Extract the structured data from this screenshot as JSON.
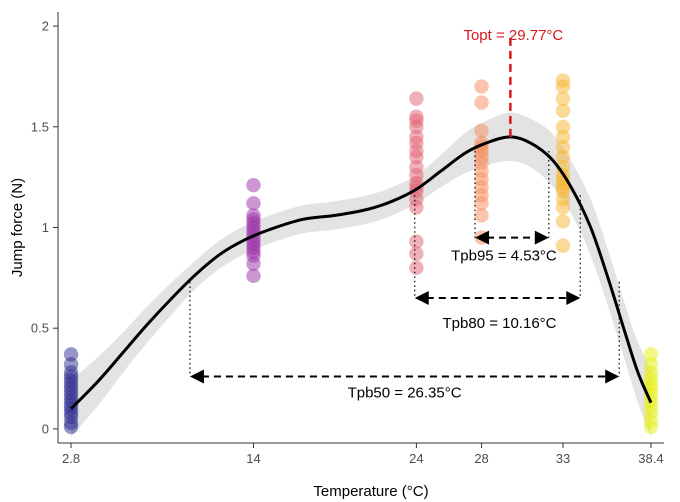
{
  "chart_data": {
    "type": "scatter",
    "xlabel": "Temperature (°C)",
    "ylabel": "Jump force (N)",
    "xlim": [
      2.0,
      39.2
    ],
    "ylim": [
      -0.07,
      2.07
    ],
    "x_ticks": [
      2.8,
      14,
      24,
      28,
      33,
      38.4
    ],
    "x_tick_labels": [
      "2.8",
      "14",
      "24",
      "28",
      "33",
      "38.4"
    ],
    "y_ticks": [
      0,
      0.5,
      1,
      1.5,
      2
    ],
    "y_tick_labels": [
      "0",
      "0.5",
      "1",
      "1.5",
      "2"
    ],
    "grid": false,
    "legend": "none",
    "series": [
      {
        "x": 2.8,
        "color": "#2e2e8f",
        "values": [
          0.01,
          0.03,
          0.06,
          0.08,
          0.1,
          0.12,
          0.14,
          0.16,
          0.18,
          0.2,
          0.22,
          0.24,
          0.26,
          0.28,
          0.32,
          0.37
        ]
      },
      {
        "x": 14,
        "color": "#9b2fa8",
        "values": [
          0.76,
          0.82,
          0.86,
          0.88,
          0.9,
          0.92,
          0.94,
          0.96,
          0.98,
          1.0,
          1.02,
          1.04,
          1.06,
          1.12,
          1.21
        ]
      },
      {
        "x": 24,
        "color": "#e26272",
        "values": [
          0.8,
          0.87,
          0.93,
          1.1,
          1.14,
          1.18,
          1.2,
          1.22,
          1.26,
          1.3,
          1.35,
          1.38,
          1.42,
          1.45,
          1.5,
          1.53,
          1.55,
          1.64
        ]
      },
      {
        "x": 28,
        "color": "#f7895c",
        "values": [
          0.95,
          1.06,
          1.12,
          1.16,
          1.2,
          1.24,
          1.28,
          1.32,
          1.35,
          1.38,
          1.4,
          1.42,
          1.48,
          1.62,
          1.7
        ]
      },
      {
        "x": 33,
        "color": "#f8b630",
        "values": [
          0.91,
          1.03,
          1.1,
          1.14,
          1.18,
          1.2,
          1.22,
          1.24,
          1.26,
          1.3,
          1.35,
          1.4,
          1.45,
          1.5,
          1.58,
          1.64,
          1.7,
          1.73
        ]
      },
      {
        "x": 38.4,
        "color": "#e8f014",
        "values": [
          0.01,
          0.04,
          0.08,
          0.11,
          0.14,
          0.17,
          0.2,
          0.22,
          0.25,
          0.28,
          0.32,
          0.37
        ]
      }
    ],
    "fit_curve": {
      "x": [
        2.8,
        4.5,
        6.0,
        7.5,
        9.0,
        10.5,
        12.0,
        13.5,
        15.0,
        17.0,
        19.0,
        21.0,
        22.5,
        24.0,
        25.5,
        27.0,
        28.3,
        29.77,
        31.0,
        32.3,
        33.5,
        34.7,
        35.8,
        36.8,
        37.6,
        38.4
      ],
      "y": [
        0.1,
        0.24,
        0.38,
        0.52,
        0.65,
        0.77,
        0.87,
        0.94,
        0.99,
        1.04,
        1.06,
        1.09,
        1.13,
        1.19,
        1.28,
        1.37,
        1.42,
        1.45,
        1.42,
        1.34,
        1.2,
        1.0,
        0.74,
        0.48,
        0.28,
        0.13
      ],
      "band_halfwidth": [
        0.14,
        0.12,
        0.1,
        0.09,
        0.08,
        0.07,
        0.07,
        0.07,
        0.07,
        0.07,
        0.07,
        0.07,
        0.07,
        0.07,
        0.08,
        0.1,
        0.11,
        0.12,
        0.12,
        0.13,
        0.13,
        0.14,
        0.14,
        0.14,
        0.15,
        0.17
      ]
    },
    "annotations": {
      "topt": {
        "label": "Topt = 29.77°C",
        "x": 29.77,
        "y_from": 1.45,
        "y_to": 1.96,
        "color": "#d7191c"
      },
      "breadths": [
        {
          "label": "Tpb95 = 4.53°C",
          "x_from": 27.6,
          "x_to": 32.13,
          "y": 0.95,
          "drop_from": 1.38
        },
        {
          "label": "Tpb80 = 10.16°C",
          "x_from": 23.9,
          "x_to": 34.06,
          "y": 0.65,
          "drop_from": 1.16
        },
        {
          "label": "Tpb50 = 26.35°C",
          "x_from": 10.1,
          "x_to": 36.45,
          "y": 0.26,
          "drop_from": 0.73
        }
      ]
    }
  }
}
